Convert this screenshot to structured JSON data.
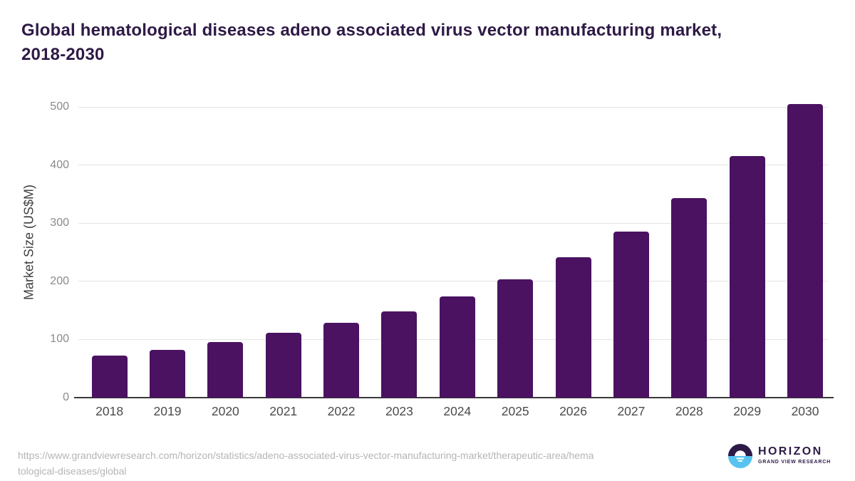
{
  "header": {
    "title_lines": [
      "Global hematological diseases adeno associated virus vector manufacturing market,",
      "2018-2030"
    ]
  },
  "chart_data": {
    "type": "bar",
    "title": "Global hematological diseases adeno associated virus vector manufacturing market, 2018-2030",
    "categories": [
      "2018",
      "2019",
      "2020",
      "2021",
      "2022",
      "2023",
      "2024",
      "2025",
      "2026",
      "2027",
      "2028",
      "2029",
      "2030"
    ],
    "values": [
      72,
      82,
      95,
      112,
      129,
      148,
      174,
      203,
      241,
      286,
      343,
      415,
      505
    ],
    "xlabel": "",
    "ylabel": "Market Size (US$M)",
    "ylim": [
      0,
      500
    ],
    "yticks": [
      0,
      100,
      200,
      300,
      400,
      500
    ],
    "grid": "horizontal",
    "legend": "none"
  },
  "footer": {
    "source_lines": [
      "https://www.grandviewresearch.com/horizon/statistics/adeno-associated-virus-vector-manufacturing-market/therapeutic-area/hema",
      "tological-diseases/global"
    ],
    "logo": {
      "name": "HORIZON",
      "subtitle": "GRAND VIEW RESEARCH"
    }
  },
  "colors": {
    "bar": "#4A1261",
    "title": "#2E1A46",
    "grid": "#E4E4E4",
    "axis": "#3A3A3A",
    "ytick_text": "#8A8A8A",
    "xtick_text": "#4A4A4A",
    "yaxis_title_text": "#3F3F3F",
    "source_text": "#B5B5B5",
    "logo_purple": "#2E1A46",
    "logo_blue": "#58C3F0"
  }
}
